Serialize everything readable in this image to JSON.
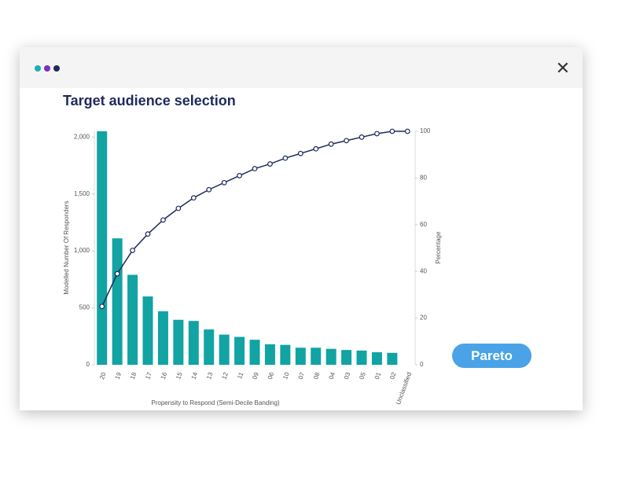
{
  "window": {
    "title": "Target audience selection",
    "button": "Pareto"
  },
  "chart_data": {
    "type": "bar",
    "x_label": "Propensity to Respond (Semi-Decile Banding)",
    "y_label": "Modelled Number Of Responders",
    "y2_label": "Percentage",
    "categories": [
      "20",
      "19",
      "18",
      "17",
      "16",
      "15",
      "14",
      "13",
      "12",
      "11",
      "09",
      "06",
      "10",
      "07",
      "08",
      "04",
      "03",
      "05",
      "01",
      "02",
      "Unclassified"
    ],
    "series": [
      {
        "type": "bar",
        "color": "#12a3a3",
        "values": [
          2050,
          1110,
          790,
          600,
          470,
          395,
          385,
          310,
          265,
          245,
          220,
          180,
          175,
          150,
          150,
          140,
          130,
          125,
          110,
          105,
          0
        ]
      },
      {
        "type": "line",
        "axis": "y2",
        "color": "#1f2a5c",
        "values": [
          25,
          39,
          49,
          56,
          62,
          67,
          71.5,
          75,
          78,
          81,
          84,
          86,
          88.5,
          90.5,
          92.5,
          94.5,
          96,
          97.5,
          99,
          100,
          100
        ]
      }
    ],
    "ylim": [
      0,
      2050
    ],
    "yticks": [
      0,
      500,
      {
        "value": 1000,
        "label": "1,000"
      },
      {
        "value": 1500,
        "label": "1,500"
      },
      {
        "value": 2000,
        "label": "2,000"
      }
    ],
    "y2lim": [
      0,
      100
    ],
    "y2ticks": [
      0,
      20,
      40,
      60,
      80,
      100
    ]
  }
}
